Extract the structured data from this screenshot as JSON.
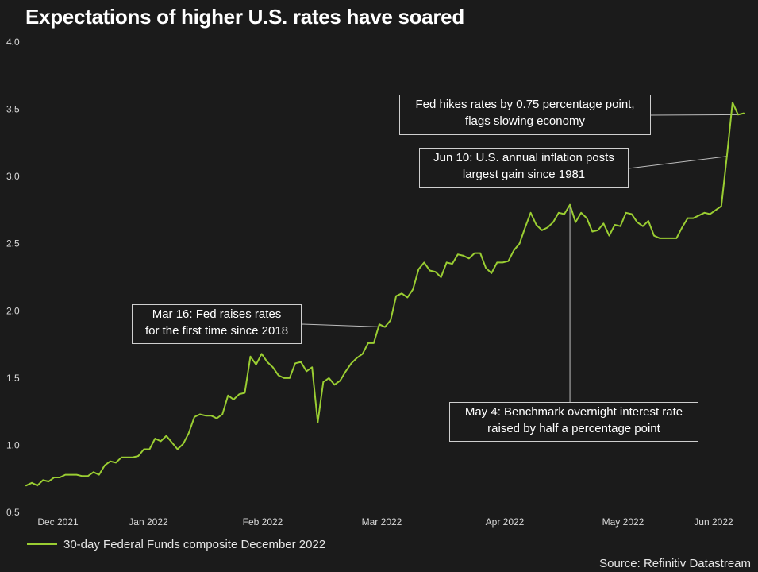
{
  "chart_data": {
    "type": "line",
    "title": "Expectations of higher U.S. rates have soared",
    "xlabel": "",
    "ylabel": "",
    "ylim": [
      0.5,
      4.0
    ],
    "yticks": [
      "0.5",
      "1.0",
      "1.5",
      "2.0",
      "2.5",
      "3.0",
      "3.5",
      "4.0"
    ],
    "xtick_labels": [
      "Dec 2021",
      "Jan 2022",
      "Feb 2022",
      "Mar 2022",
      "Apr 2022",
      "May 2022",
      "Jun 2022"
    ],
    "grid": false,
    "legend": "bottom-left",
    "source": "Source: Refinitiv Datastream",
    "series": [
      {
        "name": "30-day Federal Funds composite December 2022",
        "color": "#9acd32",
        "values": [
          0.7,
          0.72,
          0.7,
          0.74,
          0.73,
          0.76,
          0.76,
          0.78,
          0.78,
          0.78,
          0.77,
          0.77,
          0.8,
          0.78,
          0.85,
          0.88,
          0.87,
          0.91,
          0.91,
          0.91,
          0.92,
          0.97,
          0.97,
          1.05,
          1.03,
          1.07,
          1.02,
          0.97,
          1.01,
          1.09,
          1.21,
          1.23,
          1.22,
          1.22,
          1.2,
          1.23,
          1.37,
          1.34,
          1.38,
          1.39,
          1.66,
          1.6,
          1.68,
          1.62,
          1.58,
          1.52,
          1.5,
          1.5,
          1.61,
          1.62,
          1.55,
          1.58,
          1.17,
          1.47,
          1.5,
          1.45,
          1.48,
          1.55,
          1.61,
          1.65,
          1.68,
          1.76,
          1.76,
          1.9,
          1.88,
          1.93,
          2.11,
          2.13,
          2.1,
          2.16,
          2.31,
          2.36,
          2.3,
          2.29,
          2.25,
          2.36,
          2.35,
          2.42,
          2.41,
          2.39,
          2.43,
          2.43,
          2.32,
          2.28,
          2.36,
          2.36,
          2.37,
          2.45,
          2.5,
          2.62,
          2.73,
          2.64,
          2.6,
          2.62,
          2.66,
          2.73,
          2.72,
          2.79,
          2.66,
          2.73,
          2.69,
          2.59,
          2.6,
          2.65,
          2.56,
          2.64,
          2.63,
          2.73,
          2.72,
          2.66,
          2.63,
          2.67,
          2.56,
          2.54,
          2.54,
          2.54,
          2.54,
          2.62,
          2.69,
          2.69,
          2.71,
          2.73,
          2.72,
          2.75,
          2.78,
          3.15,
          3.55,
          3.46,
          3.47
        ]
      }
    ],
    "annotations": [
      {
        "line1": "Fed hikes rates by 0.75 percentage point,",
        "line2": "flags slowing economy",
        "point_index": 127
      },
      {
        "line1": "Jun 10: U.S. annual inflation posts",
        "line2": "largest gain since 1981",
        "point_index": 125
      },
      {
        "line1": "Mar 16: Fed raises rates",
        "line2": "for the first time since 2018",
        "point_index": 64
      },
      {
        "line1": "May 4: Benchmark overnight interest rate",
        "line2": "raised by half a percentage point",
        "point_index": 97
      }
    ]
  },
  "colors": {
    "background": "#1b1b1b",
    "line": "#9acd32",
    "leader": "#bdbdbd"
  }
}
